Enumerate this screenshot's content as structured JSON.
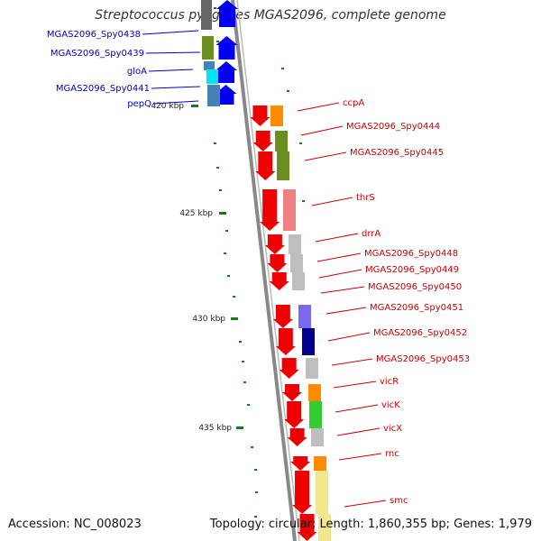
{
  "title": "Streptococcus pyogenes MGAS2096, complete genome",
  "footer": {
    "accession": "Accession: NC_008023",
    "summary": "Topology: circular; Length: 1,860,355 bp; Genes: 1,979"
  },
  "colors": {
    "forward_gene": "#0000ee",
    "reverse_gene": "#ee0000",
    "tick": "#1a7a1a",
    "backbone": "#888888",
    "label_blue": "#0000cc",
    "label_red": "#cc0000"
  },
  "scale": {
    "ticks_kbp": [
      420,
      425,
      430,
      435
    ],
    "tick_labels": [
      "420 kbp",
      "425 kbp",
      "430 kbp",
      "435 kbp"
    ]
  },
  "genes_forward": [
    {
      "name": "MGAS2096_Spy0438",
      "category_color": "#666666"
    },
    {
      "name": "MGAS2096_Spy0439",
      "category_color": "#6b8e23"
    },
    {
      "name": "gloA",
      "category_color": "#00e5ee"
    },
    {
      "name": "MGAS2096_Spy0441",
      "category_color": "#4682b4"
    },
    {
      "name": "pepQ",
      "category_color": "#4682b4"
    }
  ],
  "genes_reverse": [
    {
      "name": "ccpA",
      "category_color": "#ff8c00"
    },
    {
      "name": "MGAS2096_Spy0444",
      "category_color": "#6b8e23"
    },
    {
      "name": "MGAS2096_Spy0445",
      "category_color": "#6b8e23"
    },
    {
      "name": "thrS",
      "category_color": "#f08080"
    },
    {
      "name": "drrA",
      "category_color": "#bebebe"
    },
    {
      "name": "MGAS2096_Spy0448",
      "category_color": "#bebebe"
    },
    {
      "name": "MGAS2096_Spy0449",
      "category_color": "#bebebe"
    },
    {
      "name": "MGAS2096_Spy0450",
      "category_color": "#bebebe"
    },
    {
      "name": "MGAS2096_Spy0451",
      "category_color": "#7b68ee"
    },
    {
      "name": "MGAS2096_Spy0452",
      "category_color": "#00008b"
    },
    {
      "name": "MGAS2096_Spy0453",
      "category_color": "#bebebe"
    },
    {
      "name": "vicR",
      "category_color": "#ff8c00"
    },
    {
      "name": "vicK",
      "category_color": "#32cd32"
    },
    {
      "name": "vicX",
      "category_color": "#bebebe"
    },
    {
      "name": "rnc",
      "category_color": "#ff8c00"
    },
    {
      "name": "smc",
      "category_color": "#f0e68c"
    }
  ]
}
